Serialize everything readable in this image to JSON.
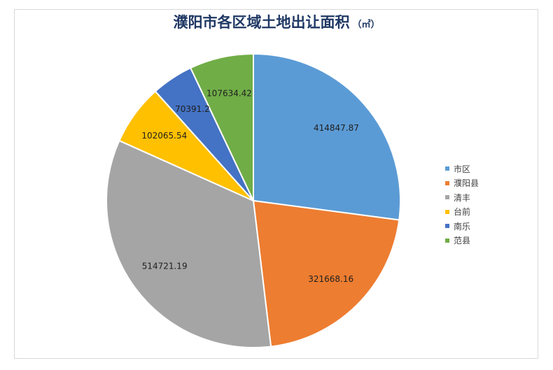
{
  "chart_data": {
    "type": "pie",
    "title": "濮阳市各区域土地出让面积",
    "unit": "（㎡）",
    "categories": [
      "市区",
      "濮阳县",
      "清丰",
      "台前",
      "南乐",
      "范县"
    ],
    "values": [
      414847.87,
      321668.16,
      514721.19,
      102065.54,
      70391.2,
      107634.42
    ],
    "labels": [
      "414847.87",
      "321668.16",
      "514721.19",
      "102065.54",
      "70391.2",
      "107634.42"
    ],
    "colors": [
      "#5b9bd5",
      "#ed7d31",
      "#a5a5a5",
      "#ffc000",
      "#4472c4",
      "#70ad47"
    ],
    "legend_position": "right"
  }
}
